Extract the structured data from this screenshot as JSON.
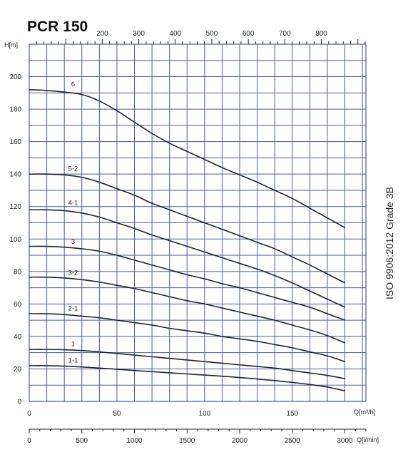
{
  "chart_data": {
    "type": "line",
    "title": "PCR 150",
    "side_note": "ISO  9906:2012   Grade 3B",
    "y_axis": {
      "label": "H[m]",
      "range": [
        0,
        220
      ],
      "ticks": [
        0,
        20,
        40,
        60,
        80,
        100,
        120,
        140,
        160,
        180,
        200
      ],
      "tick_labels": [
        "0",
        "20",
        "40",
        "60",
        "80",
        "100",
        "120",
        "140",
        "160",
        "180",
        "200"
      ]
    },
    "x_axis_bottom_primary": {
      "label": "Q[m³/h]",
      "range": [
        0,
        192
      ],
      "ticks": [
        0,
        50,
        100,
        150
      ],
      "tick_labels": [
        "0",
        "50",
        "100",
        "150"
      ]
    },
    "x_axis_top": {
      "label": "",
      "range": [
        0,
        922
      ],
      "ticks": [
        200,
        300,
        400,
        500,
        600,
        700,
        800
      ],
      "tick_labels": [
        "200",
        "300",
        "400",
        "500",
        "600",
        "700",
        "800"
      ]
    },
    "x_axis_bottom_secondary": {
      "label": "Q[l/min]",
      "range": [
        0,
        3200
      ],
      "ticks": [
        0,
        500,
        1000,
        1500,
        2000,
        2500,
        3000
      ],
      "tick_labels": [
        "0",
        "500",
        "1000",
        "1500",
        "2000",
        "2500",
        "3000"
      ]
    },
    "grid": true,
    "series": [
      {
        "name": "6",
        "label_at": [
          25,
          194
        ],
        "x": [
          0,
          10,
          20,
          30,
          40,
          50,
          60,
          70,
          80,
          90,
          100,
          110,
          120,
          130,
          140,
          150,
          160,
          170,
          180
        ],
        "y": [
          192,
          191.5,
          190.5,
          189,
          185,
          179,
          172,
          165,
          159,
          154,
          149,
          144,
          139.5,
          135,
          130,
          125,
          119,
          113,
          107
        ]
      },
      {
        "name": "5-2",
        "label_at": [
          25,
          142
        ],
        "x": [
          0,
          10,
          20,
          30,
          40,
          50,
          60,
          70,
          80,
          90,
          100,
          110,
          120,
          130,
          140,
          150,
          160,
          170,
          180
        ],
        "y": [
          140,
          140,
          139.5,
          138,
          135,
          131,
          127,
          122,
          118,
          114,
          110,
          106,
          102,
          98,
          94,
          89,
          84,
          78.5,
          73
        ]
      },
      {
        "name": "4-1",
        "label_at": [
          25,
          121
        ],
        "x": [
          0,
          10,
          20,
          30,
          40,
          50,
          60,
          70,
          80,
          90,
          100,
          110,
          120,
          130,
          140,
          150,
          160,
          170,
          180
        ],
        "y": [
          118,
          118,
          117.5,
          116,
          113.5,
          110,
          106.5,
          102.5,
          99,
          95.5,
          92,
          88.5,
          85,
          81.5,
          77.5,
          73,
          68,
          63,
          58
        ]
      },
      {
        "name": "3",
        "label_at": [
          25,
          97
        ],
        "x": [
          0,
          10,
          20,
          30,
          40,
          50,
          60,
          70,
          80,
          90,
          100,
          110,
          120,
          130,
          140,
          150,
          160,
          170,
          180
        ],
        "y": [
          95.5,
          95.5,
          95,
          94,
          92.5,
          90,
          87,
          84,
          81,
          78,
          75.5,
          72.5,
          70,
          67,
          64,
          61,
          58,
          54,
          50
        ]
      },
      {
        "name": "3-2",
        "label_at": [
          25,
          78
        ],
        "x": [
          0,
          10,
          20,
          30,
          40,
          50,
          60,
          70,
          80,
          90,
          100,
          110,
          120,
          130,
          140,
          150,
          160,
          170,
          180
        ],
        "y": [
          76.5,
          76.5,
          76,
          75,
          73.5,
          71.5,
          69.5,
          67,
          64.5,
          62,
          60,
          57.5,
          55,
          52.5,
          50,
          47,
          44,
          40.5,
          36
        ]
      },
      {
        "name": "2-1",
        "label_at": [
          25,
          56
        ],
        "x": [
          0,
          10,
          20,
          30,
          40,
          50,
          60,
          70,
          80,
          90,
          100,
          110,
          120,
          130,
          140,
          150,
          160,
          170,
          180
        ],
        "y": [
          54,
          54,
          53.5,
          52.5,
          51.5,
          50,
          48.5,
          47,
          45,
          43.5,
          42,
          40,
          38.5,
          37,
          35,
          33,
          30.5,
          28,
          24.5
        ]
      },
      {
        "name": "1",
        "label_at": [
          25,
          34
        ],
        "x": [
          0,
          10,
          20,
          30,
          40,
          50,
          60,
          70,
          80,
          90,
          100,
          110,
          120,
          130,
          140,
          150,
          160,
          170,
          180
        ],
        "y": [
          32,
          32,
          31.8,
          31.3,
          30.5,
          29.5,
          28.5,
          27.5,
          26.5,
          25.5,
          24.5,
          23.5,
          22.5,
          21.5,
          20.5,
          19,
          17.5,
          16,
          14
        ]
      },
      {
        "name": "1-1",
        "label_at": [
          25,
          24
        ],
        "x": [
          0,
          10,
          20,
          30,
          40,
          50,
          60,
          70,
          80,
          90,
          100,
          110,
          120,
          130,
          140,
          150,
          160,
          170,
          180
        ],
        "y": [
          22,
          22,
          21.7,
          21.2,
          20.5,
          19.8,
          19,
          18.3,
          17.6,
          16.9,
          16.2,
          15.5,
          14.7,
          13.8,
          12.8,
          11.7,
          10.4,
          8.8,
          6.5
        ]
      }
    ],
    "colors": {
      "grid": "#4a5a9a",
      "curve": "#1e2430",
      "text": "#222222"
    }
  }
}
